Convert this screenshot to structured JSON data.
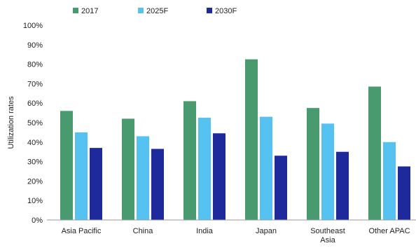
{
  "chart_data": {
    "type": "bar",
    "title": "",
    "xlabel": "",
    "ylabel": "Utilization rates",
    "ylim": [
      0,
      100
    ],
    "y_ticks": [
      "0%",
      "10%",
      "20%",
      "30%",
      "40%",
      "50%",
      "60%",
      "70%",
      "80%",
      "90%",
      "100%"
    ],
    "y_tick_values": [
      0,
      10,
      20,
      30,
      40,
      50,
      60,
      70,
      80,
      90,
      100
    ],
    "categories": [
      "Asia Pacific",
      "China",
      "India",
      "Japan",
      "Southeast Asia",
      "Other APAC"
    ],
    "series": [
      {
        "name": "2017",
        "color": "#4a9a6f",
        "values": [
          56,
          52,
          61,
          82.5,
          57.5,
          68.5
        ]
      },
      {
        "name": "2025F",
        "color": "#56c2f2",
        "values": [
          45,
          43,
          52.5,
          53,
          49.5,
          40
        ]
      },
      {
        "name": "2030F",
        "color": "#1e2a9c",
        "values": [
          37,
          36.5,
          44.5,
          33,
          35,
          27.5
        ]
      }
    ],
    "legend_position": "top-left",
    "grid": false
  }
}
